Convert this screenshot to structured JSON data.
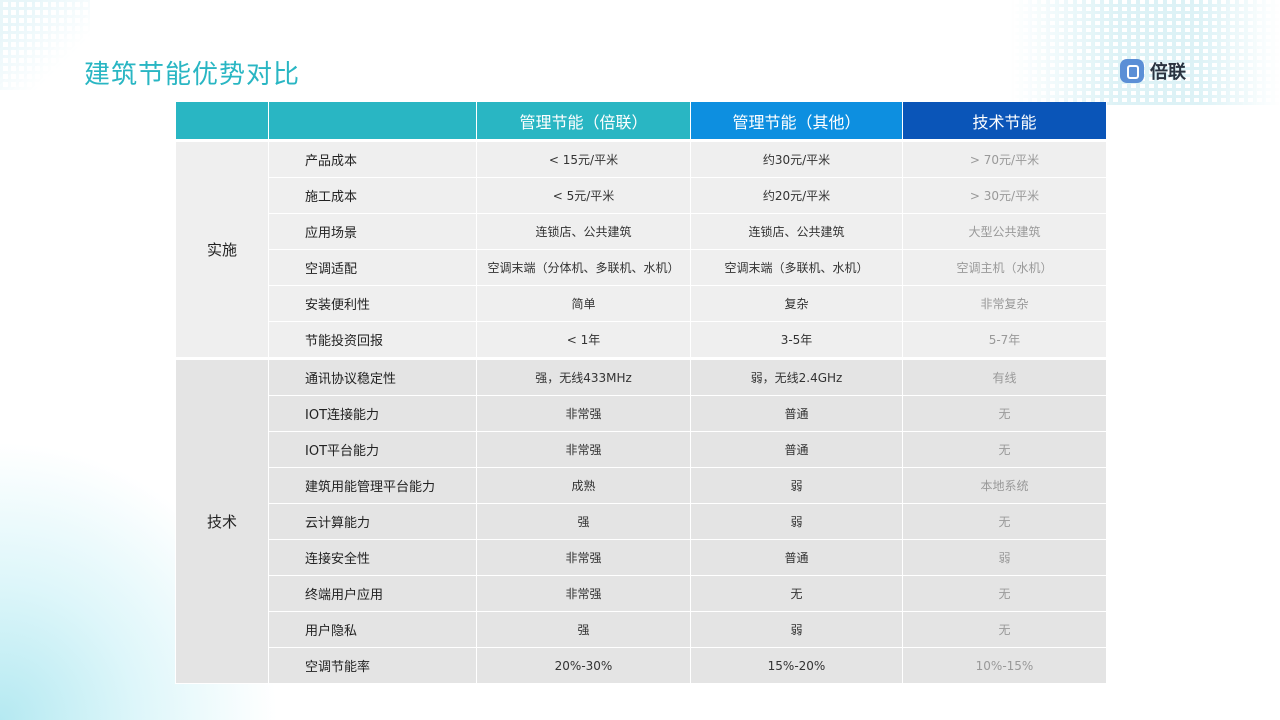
{
  "title": "建筑节能优势对比",
  "logo": {
    "text": "倍联",
    "brand_color": "#5b8fd6"
  },
  "colors": {
    "teal": "#29b6c3",
    "blue": "#0d8fe0",
    "dark_blue": "#0a55b8"
  },
  "table": {
    "headers": [
      "",
      "",
      "管理节能（倍联）",
      "管理节能（其他）",
      "技术节能"
    ],
    "sections": [
      {
        "label": "实施",
        "rows": [
          [
            "产品成本",
            "< 15元/平米",
            "约30元/平米",
            "> 70元/平米"
          ],
          [
            "施工成本",
            "< 5元/平米",
            "约20元/平米",
            "> 30元/平米"
          ],
          [
            "应用场景",
            "连锁店、公共建筑",
            "连锁店、公共建筑",
            "大型公共建筑"
          ],
          [
            "空调适配",
            "空调末端（分体机、多联机、水机）",
            "空调末端（多联机、水机）",
            "空调主机（水机）"
          ],
          [
            "安装便利性",
            "简单",
            "复杂",
            "非常复杂"
          ],
          [
            "节能投资回报",
            "< 1年",
            "3-5年",
            "5-7年"
          ]
        ]
      },
      {
        "label": "技术",
        "rows": [
          [
            "通讯协议稳定性",
            "强，无线433MHz",
            "弱，无线2.4GHz",
            "有线"
          ],
          [
            "IOT连接能力",
            "非常强",
            "普通",
            "无"
          ],
          [
            "IOT平台能力",
            "非常强",
            "普通",
            "无"
          ],
          [
            "建筑用能管理平台能力",
            "成熟",
            "弱",
            "本地系统"
          ],
          [
            "云计算能力",
            "强",
            "弱",
            "无"
          ],
          [
            "连接安全性",
            "非常强",
            "普通",
            "弱"
          ],
          [
            "终端用户应用",
            "非常强",
            "无",
            "无"
          ],
          [
            "用户隐私",
            "强",
            "弱",
            "无"
          ],
          [
            "空调节能率",
            "20%-30%",
            "15%-20%",
            "10%-15%"
          ]
        ]
      }
    ]
  }
}
